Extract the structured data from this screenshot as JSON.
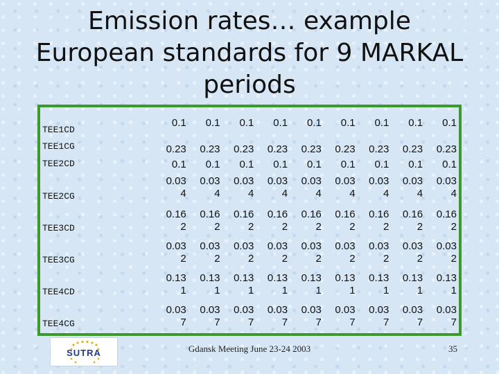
{
  "slide": {
    "title_lines": [
      "Emission rates… example",
      "European standards for 9 MARKAL",
      "periods"
    ],
    "footer": "Gdansk Meeting June 23-24 2003",
    "page_number": "35",
    "logo": {
      "text": "SUTRA",
      "colors": {
        "primary": "#1e3b8a",
        "accent": "#c0222a",
        "stars": "#e0b020"
      }
    },
    "table_border_color": "#3c9a2a"
  },
  "table": {
    "rows": [
      {
        "label": "TEE1CD",
        "values": [
          [
            "0.1"
          ],
          [
            "0.1"
          ],
          [
            "0.1"
          ],
          [
            "0.1"
          ],
          [
            "0.1"
          ],
          [
            "0.1"
          ],
          [
            "0.1"
          ],
          [
            "0.1"
          ],
          [
            "0.1"
          ]
        ]
      },
      {
        "label": "TEE1CG",
        "values": [
          [
            "0.23"
          ],
          [
            "0.23"
          ],
          [
            "0.23"
          ],
          [
            "0.23"
          ],
          [
            "0.23"
          ],
          [
            "0.23"
          ],
          [
            "0.23"
          ],
          [
            "0.23"
          ],
          [
            "0.23"
          ]
        ]
      },
      {
        "label": "TEE2CD",
        "values": [
          [
            "0.1"
          ],
          [
            "0.1"
          ],
          [
            "0.1"
          ],
          [
            "0.1"
          ],
          [
            "0.1"
          ],
          [
            "0.1"
          ],
          [
            "0.1"
          ],
          [
            "0.1"
          ],
          [
            "0.1"
          ]
        ]
      },
      {
        "label": "TEE2CG",
        "values": [
          [
            "0.03",
            "4"
          ],
          [
            "0.03",
            "4"
          ],
          [
            "0.03",
            "4"
          ],
          [
            "0.03",
            "4"
          ],
          [
            "0.03",
            "4"
          ],
          [
            "0.03",
            "4"
          ],
          [
            "0.03",
            "4"
          ],
          [
            "0.03",
            "4"
          ],
          [
            "0.03",
            "4"
          ]
        ]
      },
      {
        "label": "TEE3CD",
        "values": [
          [
            "0.16",
            "2"
          ],
          [
            "0.16",
            "2"
          ],
          [
            "0.16",
            "2"
          ],
          [
            "0.16",
            "2"
          ],
          [
            "0.16",
            "2"
          ],
          [
            "0.16",
            "2"
          ],
          [
            "0.16",
            "2"
          ],
          [
            "0.16",
            "2"
          ],
          [
            "0.16",
            "2"
          ]
        ]
      },
      {
        "label": "TEE3CG",
        "values": [
          [
            "0.03",
            "2"
          ],
          [
            "0.03",
            "2"
          ],
          [
            "0.03",
            "2"
          ],
          [
            "0.03",
            "2"
          ],
          [
            "0.03",
            "2"
          ],
          [
            "0.03",
            "2"
          ],
          [
            "0.03",
            "2"
          ],
          [
            "0.03",
            "2"
          ],
          [
            "0.03",
            "2"
          ]
        ]
      },
      {
        "label": "TEE4CD",
        "values": [
          [
            "0.13",
            "1"
          ],
          [
            "0.13",
            "1"
          ],
          [
            "0.13",
            "1"
          ],
          [
            "0.13",
            "1"
          ],
          [
            "0.13",
            "1"
          ],
          [
            "0.13",
            "1"
          ],
          [
            "0.13",
            "1"
          ],
          [
            "0.13",
            "1"
          ],
          [
            "0.13",
            "1"
          ]
        ]
      },
      {
        "label": "TEE4CG",
        "values": [
          [
            "0.03",
            "7"
          ],
          [
            "0.03",
            "7"
          ],
          [
            "0.03",
            "7"
          ],
          [
            "0.03",
            "7"
          ],
          [
            "0.03",
            "7"
          ],
          [
            "0.03",
            "7"
          ],
          [
            "0.03",
            "7"
          ],
          [
            "0.03",
            "7"
          ],
          [
            "0.03",
            "7"
          ]
        ]
      }
    ]
  }
}
